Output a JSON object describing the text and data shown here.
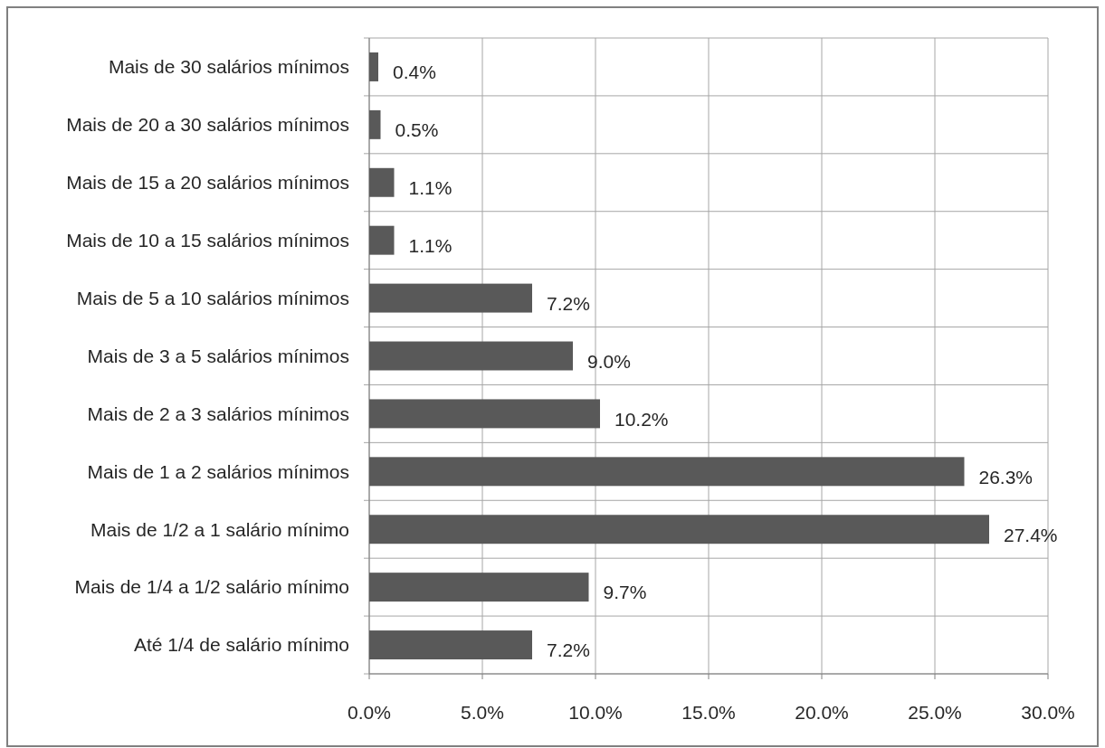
{
  "chart_data": {
    "type": "bar",
    "orientation": "horizontal",
    "categories": [
      "Mais de 30 salários mínimos",
      "Mais de 20 a 30 salários mínimos",
      "Mais de 15 a 20 salários mínimos",
      "Mais de 10 a 15 salários mínimos",
      "Mais de 5 a 10 salários mínimos",
      "Mais de 3 a 5 salários mínimos",
      "Mais de 2 a 3 salários mínimos",
      "Mais de 1 a 2 salários mínimos",
      "Mais de 1/2 a 1 salário mínimo",
      "Mais de 1/4 a 1/2 salário mínimo",
      "Até 1/4 de salário mínimo"
    ],
    "values": [
      0.4,
      0.5,
      1.1,
      1.1,
      7.2,
      9.0,
      10.2,
      26.3,
      27.4,
      9.7,
      7.2
    ],
    "value_labels": [
      "0.4%",
      "0.5%",
      "1.1%",
      "1.1%",
      "7.2%",
      "9.0%",
      "10.2%",
      "26.3%",
      "27.4%",
      "9.7%",
      "7.2%"
    ],
    "color": "#595959",
    "xlim": [
      0,
      30
    ],
    "xticks": [
      {
        "value": 0,
        "label": "0.0%"
      },
      {
        "value": 5,
        "label": "5.0%"
      },
      {
        "value": 10,
        "label": "10.0%"
      },
      {
        "value": 15,
        "label": "15.0%"
      },
      {
        "value": 20,
        "label": "20.0%"
      },
      {
        "value": 25,
        "label": "25.0%"
      },
      {
        "value": 30,
        "label": "30.0%"
      }
    ],
    "grid": true
  }
}
